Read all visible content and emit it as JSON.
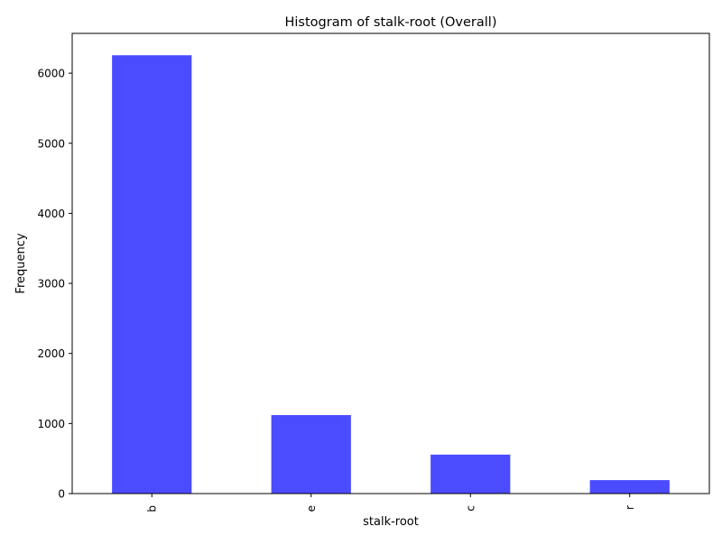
{
  "chart_data": {
    "type": "bar",
    "title": "Histogram of stalk-root (Overall)",
    "xlabel": "stalk-root",
    "ylabel": "Frequency",
    "categories": [
      "b",
      "e",
      "c",
      "r"
    ],
    "values": [
      6256,
      1120,
      556,
      192
    ],
    "ylim": [
      0,
      6568
    ],
    "yticks": [
      0,
      1000,
      2000,
      3000,
      4000,
      5000,
      6000
    ],
    "bar_color": "#4b4bff",
    "grid": false,
    "legend": "none"
  }
}
